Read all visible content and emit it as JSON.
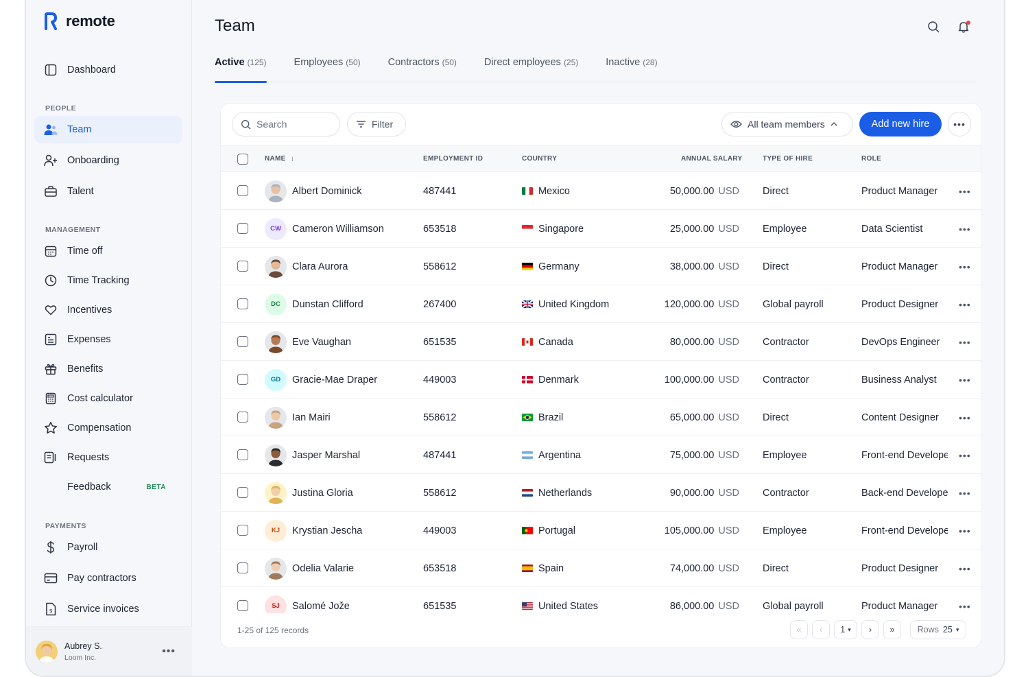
{
  "app": {
    "name": "remote"
  },
  "sidebar": {
    "dashboard": "Dashboard",
    "sections": {
      "people": "PEOPLE",
      "management": "MANAGEMENT",
      "payments": "PAYMENTS"
    },
    "people_items": [
      "Team",
      "Onboarding",
      "Talent"
    ],
    "management_items": [
      "Time off",
      "Time Tracking",
      "Incentives",
      "Expenses",
      "Benefits",
      "Cost calculator",
      "Compensation",
      "Requests",
      "Feedback"
    ],
    "feedback_badge": "BETA",
    "payment_items": [
      "Payroll",
      "Pay contractors",
      "Service invoices"
    ],
    "user": {
      "name": "Aubrey S.",
      "org": "Loom Inc."
    }
  },
  "header": {
    "title": "Team"
  },
  "tabs": [
    {
      "label": "Active",
      "count": "(125)"
    },
    {
      "label": "Employees",
      "count": "(50)"
    },
    {
      "label": "Contractors",
      "count": "(50)"
    },
    {
      "label": "Direct employees",
      "count": "(25)"
    },
    {
      "label": "Inactive",
      "count": "(28)"
    }
  ],
  "toolbar": {
    "search_placeholder": "Search",
    "filter_label": "Filter",
    "members_label": "All team members",
    "add_label": "Add new hire"
  },
  "table": {
    "columns": [
      "NAME",
      "EMPLOYMENT ID",
      "COUNTRY",
      "ANNUAL SALARY",
      "TYPE OF HIRE",
      "ROLE"
    ],
    "currency": "USD",
    "rows": [
      {
        "name": "Albert Dominick",
        "initials": "",
        "id": "487441",
        "country": "Mexico",
        "salary": "50,000.00",
        "type": "Direct",
        "role": "Product Manager"
      },
      {
        "name": "Cameron Williamson",
        "initials": "CW",
        "id": "653518",
        "country": "Singapore",
        "salary": "25,000.00",
        "type": "Employee",
        "role": "Data Scientist"
      },
      {
        "name": "Clara Aurora",
        "initials": "",
        "id": "558612",
        "country": "Germany",
        "salary": "38,000.00",
        "type": "Direct",
        "role": "Product Manager"
      },
      {
        "name": "Dunstan Clifford",
        "initials": "DC",
        "id": "267400",
        "country": "United Kingdom",
        "salary": "120,000.00",
        "type": "Global payroll",
        "role": "Product Designer"
      },
      {
        "name": "Eve Vaughan",
        "initials": "",
        "id": "651535",
        "country": "Canada",
        "salary": "80,000.00",
        "type": "Contractor",
        "role": "DevOps Engineer"
      },
      {
        "name": "Gracie-Mae Draper",
        "initials": "GD",
        "id": "449003",
        "country": "Denmark",
        "salary": "100,000.00",
        "type": "Contractor",
        "role": "Business Analyst"
      },
      {
        "name": "Ian Mairi",
        "initials": "",
        "id": "558612",
        "country": "Brazil",
        "salary": "65,000.00",
        "type": "Direct",
        "role": "Content Designer"
      },
      {
        "name": "Jasper Marshal",
        "initials": "",
        "id": "487441",
        "country": "Argentina",
        "salary": "75,000.00",
        "type": "Employee",
        "role": "Front-end Developer"
      },
      {
        "name": "Justina Gloria",
        "initials": "",
        "id": "558612",
        "country": "Netherlands",
        "salary": "90,000.00",
        "type": "Contractor",
        "role": "Back-end Developer"
      },
      {
        "name": "Krystian Jescha",
        "initials": "KJ",
        "id": "449003",
        "country": "Portugal",
        "salary": "105,000.00",
        "type": "Employee",
        "role": "Front-end Developer"
      },
      {
        "name": "Odelia Valarie",
        "initials": "",
        "id": "653518",
        "country": "Spain",
        "salary": "74,000.00",
        "type": "Direct",
        "role": "Product Designer"
      },
      {
        "name": "Salomé Jože",
        "initials": "SJ",
        "id": "651535",
        "country": "United States",
        "salary": "86,000.00",
        "type": "Global payroll",
        "role": "Product Manager"
      }
    ]
  },
  "pagination": {
    "records": "1-25 of 125 records",
    "page": "1",
    "rows_label": "Rows",
    "rows_value": "25"
  },
  "colors": {
    "accent": "#1b5ee5",
    "active_bg": "#eaf0fc",
    "beta": "#1e8e5a"
  }
}
